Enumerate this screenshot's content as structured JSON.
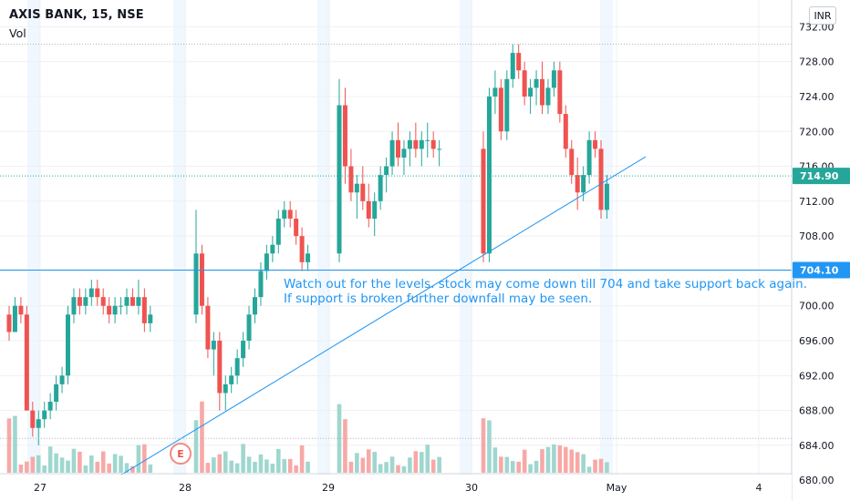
{
  "header": {
    "title": "AXIS BANK, 15, NSE",
    "volume_label": "Vol"
  },
  "currency_button": "INR",
  "annotation": {
    "line1": "Watch out for the levels. stock may come down till 704 and take support back again.",
    "line2": "If support is broken further downfall may be seen."
  },
  "earnings_marker": "E",
  "colors": {
    "up": "#26a69a",
    "down": "#ef5350",
    "line": "#2196f3",
    "grid": "#eef0f3",
    "vol_up": "#9fd7cf",
    "vol_down": "#f7a9a7"
  },
  "chart_data": {
    "type": "candlestick",
    "title": "AXIS BANK, 15, NSE",
    "y_axis": {
      "ticks": [
        "680.00",
        "684.00",
        "688.00",
        "692.00",
        "696.00",
        "700.00",
        "704.00",
        "708.00",
        "712.00",
        "716.00",
        "720.00",
        "724.00",
        "728.00",
        "732.00"
      ],
      "range": [
        679.5,
        733.5
      ]
    },
    "x_axis": {
      "ticks": [
        "27",
        "28",
        "29",
        "30",
        "May",
        "4"
      ]
    },
    "last_price": {
      "label": "714.90",
      "value": 714.9
    },
    "support_level": {
      "label": "704.10",
      "value": 704.1
    },
    "sessions": [
      {
        "label": "27",
        "candles": [
          [
            699,
            700,
            696,
            697
          ],
          [
            697,
            701,
            697,
            700
          ],
          [
            700,
            701,
            698,
            699
          ],
          [
            699,
            700,
            688,
            688
          ],
          [
            688,
            689,
            685,
            686
          ],
          [
            686,
            688,
            684,
            687
          ],
          [
            687,
            689,
            686,
            688
          ],
          [
            688,
            690,
            687,
            689
          ],
          [
            689,
            692,
            688,
            691
          ],
          [
            691,
            693,
            690,
            692
          ],
          [
            692,
            700,
            691,
            699
          ],
          [
            699,
            702,
            698,
            701
          ],
          [
            701,
            702,
            699,
            700
          ],
          [
            700,
            702,
            699,
            701
          ],
          [
            701,
            703,
            700,
            702
          ],
          [
            702,
            703,
            700,
            701
          ],
          [
            701,
            702,
            699,
            700
          ],
          [
            700,
            701,
            698,
            699
          ],
          [
            699,
            701,
            698,
            700
          ],
          [
            700,
            701,
            699,
            700
          ],
          [
            700,
            702,
            699,
            701
          ],
          [
            701,
            702,
            700,
            700
          ],
          [
            700,
            703,
            699,
            701
          ],
          [
            701,
            702,
            697,
            698
          ],
          [
            698,
            700,
            697,
            699
          ]
        ]
      },
      {
        "label": "28",
        "candles": [
          [
            699,
            711,
            698,
            706
          ],
          [
            706,
            707,
            699,
            700
          ],
          [
            700,
            701,
            694,
            695
          ],
          [
            695,
            697,
            692,
            696
          ],
          [
            696,
            697,
            688,
            690
          ],
          [
            690,
            692,
            688,
            691
          ],
          [
            691,
            693,
            690,
            692
          ],
          [
            692,
            695,
            691,
            694
          ],
          [
            694,
            697,
            693,
            696
          ],
          [
            696,
            700,
            695,
            699
          ],
          [
            699,
            702,
            698,
            701
          ],
          [
            701,
            705,
            700,
            704
          ],
          [
            704,
            707,
            703,
            706
          ],
          [
            706,
            708,
            705,
            707
          ],
          [
            707,
            711,
            706,
            710
          ],
          [
            710,
            712,
            709,
            711
          ],
          [
            711,
            712,
            709,
            710
          ],
          [
            710,
            711,
            707,
            708
          ],
          [
            708,
            709,
            704,
            705
          ],
          [
            705,
            707,
            704,
            706
          ]
        ]
      },
      {
        "label": "29",
        "candles": [
          [
            706,
            726,
            705,
            723
          ],
          [
            723,
            725,
            714,
            716
          ],
          [
            716,
            718,
            712,
            713
          ],
          [
            713,
            715,
            710,
            714
          ],
          [
            714,
            716,
            711,
            712
          ],
          [
            712,
            714,
            709,
            710
          ],
          [
            710,
            713,
            708,
            712
          ],
          [
            712,
            716,
            711,
            715
          ],
          [
            715,
            717,
            713,
            716
          ],
          [
            716,
            720,
            715,
            719
          ],
          [
            719,
            721,
            716,
            717
          ],
          [
            717,
            719,
            715,
            718
          ],
          [
            718,
            720,
            716,
            719
          ],
          [
            719,
            721,
            717,
            718
          ],
          [
            718,
            720,
            716,
            719
          ],
          [
            719,
            721,
            717,
            719
          ],
          [
            719,
            720,
            717,
            718
          ],
          [
            718,
            719,
            716,
            718
          ]
        ]
      },
      {
        "label": "30",
        "candles": [
          [
            718,
            720,
            705,
            706
          ],
          [
            706,
            725,
            705,
            724
          ],
          [
            724,
            727,
            722,
            725
          ],
          [
            725,
            726,
            719,
            720
          ],
          [
            720,
            727,
            719,
            726
          ],
          [
            726,
            730,
            725,
            729
          ],
          [
            729,
            730,
            726,
            727
          ],
          [
            727,
            728,
            723,
            724
          ],
          [
            724,
            726,
            722,
            725
          ],
          [
            725,
            727,
            723,
            726
          ],
          [
            726,
            728,
            722,
            723
          ],
          [
            723,
            726,
            722,
            725
          ],
          [
            725,
            728,
            724,
            727
          ],
          [
            727,
            728,
            721,
            722
          ],
          [
            722,
            723,
            717,
            718
          ],
          [
            718,
            719,
            714,
            715
          ],
          [
            715,
            717,
            711,
            713
          ],
          [
            713,
            716,
            712,
            715
          ],
          [
            715,
            720,
            714,
            719
          ],
          [
            719,
            720,
            717,
            718
          ],
          [
            718,
            719,
            710,
            711
          ],
          [
            711,
            715,
            710,
            714
          ]
        ]
      }
    ]
  }
}
